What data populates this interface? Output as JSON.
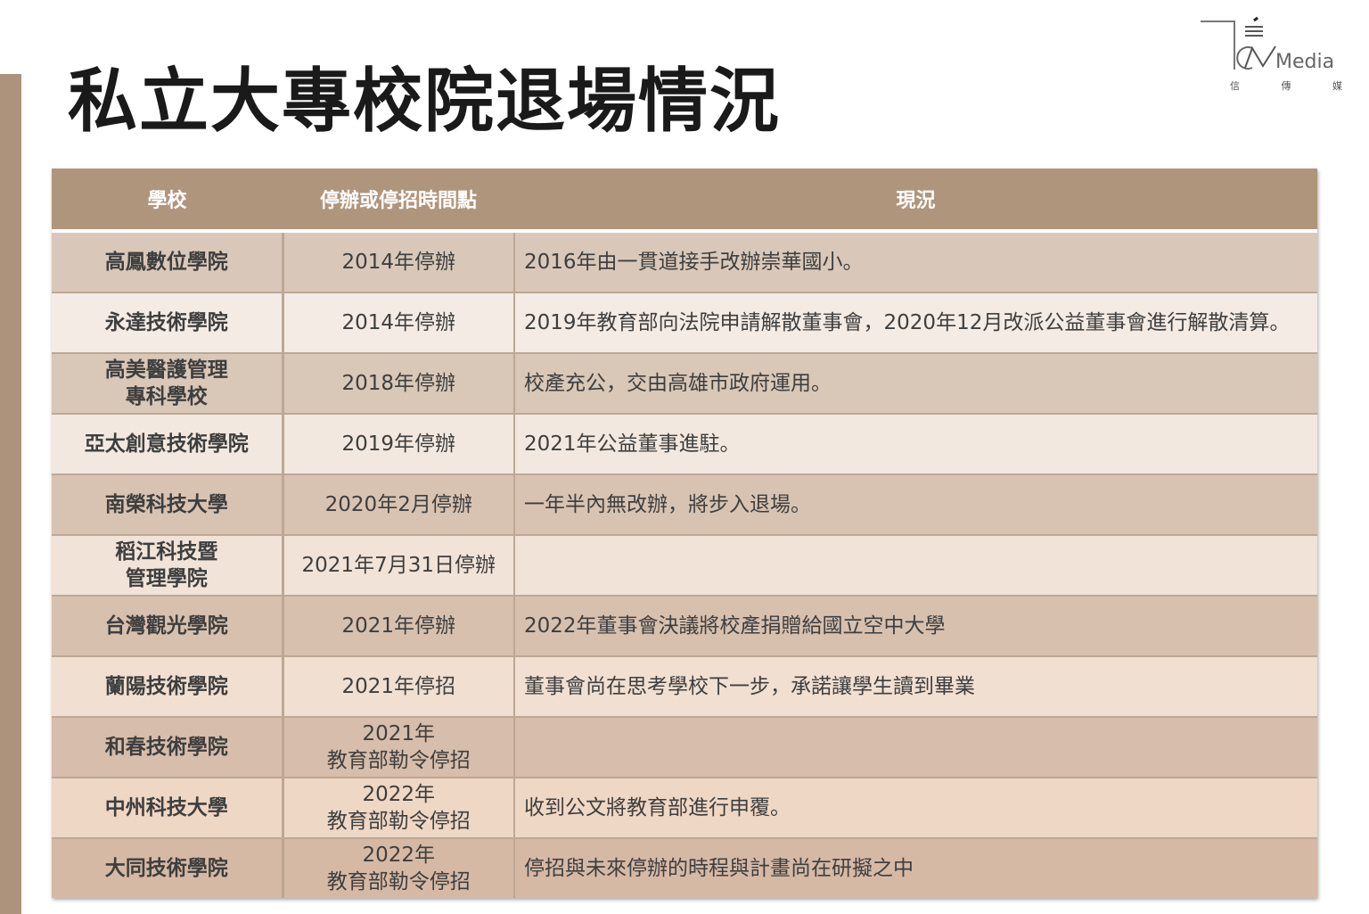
{
  "title": "私立大專校院退場情況",
  "logo": {
    "text": "Media",
    "sub": [
      "信",
      "傳",
      "媒"
    ]
  },
  "table": {
    "headers": [
      "學校",
      "停辦或停招時間點",
      "現況"
    ],
    "rows": [
      [
        "高鳳數位學院",
        "2014年停辦",
        "2016年由一貫道接手改辦崇華國小。"
      ],
      [
        "永達技術學院",
        "2014年停辦",
        "2019年教育部向法院申請解散董事會，2020年12月改派公益董事會進行解散清算。"
      ],
      [
        "高美醫護管理\n專科學校",
        "2018年停辦",
        "校產充公，交由高雄市政府運用。"
      ],
      [
        "亞太創意技術學院",
        "2019年停辦",
        "2021年公益董事進駐。"
      ],
      [
        "南榮科技大學",
        "2020年2月停辦",
        "一年半內無改辦，將步入退場。"
      ],
      [
        "稻江科技暨\n管理學院",
        "2021年7月31日停辦",
        ""
      ],
      [
        "台灣觀光學院",
        "2021年停辦",
        "2022年董事會決議將校產捐贈給國立空中大學"
      ],
      [
        "蘭陽技術學院",
        "2021年停招",
        "董事會尚在思考學校下一步，承諾讓學生讀到畢業"
      ],
      [
        "和春技術學院",
        "2021年\n教育部勒令停招",
        ""
      ],
      [
        "中州科技大學",
        "2022年\n教育部勒令停招",
        "收到公文將教育部進行申覆。"
      ],
      [
        "大同技術學院",
        "2022年\n教育部勒令停招",
        "停招與未來停辦的時程與計畫尚在研擬之中"
      ]
    ]
  },
  "colors": {
    "header": "#b0957d",
    "sidebar": "#ad937b",
    "row_dark": "#d9c8b9",
    "row_light": "#f4ebe4"
  }
}
